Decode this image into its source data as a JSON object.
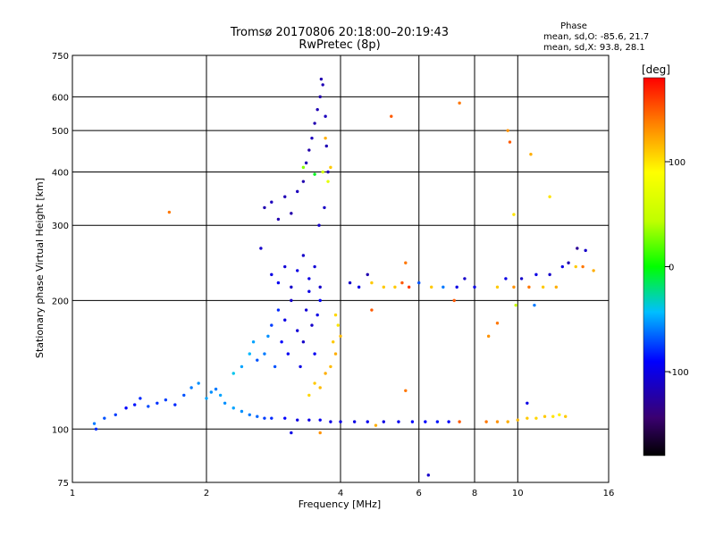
{
  "chart_data": {
    "type": "scatter",
    "title": "Tromsø 20170806 20:18:00–20:19:43",
    "subtitle": "RwPretec (8p)",
    "xlabel": "Frequency [MHz]",
    "ylabel": "Stationary phase Virtual Height [km]",
    "x_scale": "log",
    "y_scale": "log",
    "xlim": [
      1,
      16
    ],
    "ylim": [
      75,
      750
    ],
    "x_ticks": [
      1,
      2,
      4,
      6,
      8,
      10,
      16
    ],
    "x_tick_labels": [
      "1",
      "2",
      "4",
      "6",
      "8",
      "10",
      "16"
    ],
    "y_ticks": [
      75,
      100,
      200,
      300,
      400,
      500,
      600,
      750
    ],
    "y_tick_labels": [
      "75",
      "100",
      "200",
      "300",
      "400",
      "500",
      "600",
      "750"
    ],
    "grid": true,
    "stats": {
      "heading": "Phase",
      "line_o": "mean, sd,O: -85.6, 21.7",
      "line_x": "mean, sd,X: 93.8, 28.1"
    },
    "colorbar": {
      "label": "[deg]",
      "range": [
        -180,
        180
      ],
      "tick_values": [
        100,
        0,
        -100
      ],
      "tick_labels": [
        "100",
        "0",
        "-100"
      ],
      "colormap": "rainbow"
    },
    "series": [
      {
        "mode": "O",
        "points": [
          [
            1.12,
            103,
            -60
          ],
          [
            1.18,
            106,
            -70
          ],
          [
            1.25,
            108,
            -75
          ],
          [
            1.32,
            112,
            -90
          ],
          [
            1.38,
            114,
            -85
          ],
          [
            1.42,
            118,
            -80
          ],
          [
            1.48,
            113,
            -72
          ],
          [
            1.55,
            115,
            -78
          ],
          [
            1.62,
            117,
            -75
          ],
          [
            1.7,
            114,
            -80
          ],
          [
            1.78,
            120,
            -70
          ],
          [
            1.85,
            125,
            -60
          ],
          [
            1.92,
            128,
            -55
          ],
          [
            2.0,
            118,
            -50
          ],
          [
            2.05,
            122,
            -55
          ],
          [
            2.1,
            124,
            -60
          ],
          [
            2.15,
            120,
            -50
          ],
          [
            2.2,
            115,
            -55
          ],
          [
            2.3,
            112,
            -50
          ],
          [
            2.4,
            110,
            -55
          ],
          [
            2.5,
            108,
            -60
          ],
          [
            2.6,
            107,
            -65
          ],
          [
            2.7,
            106,
            -75
          ],
          [
            2.8,
            106,
            -80
          ],
          [
            3.0,
            106,
            -90
          ],
          [
            3.2,
            105,
            -100
          ],
          [
            3.4,
            105,
            -100
          ],
          [
            3.6,
            105,
            -95
          ],
          [
            3.8,
            104,
            -100
          ],
          [
            4.0,
            104,
            -100
          ],
          [
            4.3,
            104,
            -100
          ],
          [
            4.6,
            104,
            -95
          ],
          [
            5.0,
            104,
            -100
          ],
          [
            5.4,
            104,
            -95
          ],
          [
            5.8,
            104,
            -90
          ],
          [
            6.2,
            104,
            -90
          ],
          [
            6.6,
            104,
            -85
          ],
          [
            7.0,
            104,
            -90
          ],
          [
            7.4,
            104,
            150
          ],
          [
            2.3,
            135,
            -40
          ],
          [
            2.4,
            140,
            -50
          ],
          [
            2.5,
            150,
            -45
          ],
          [
            2.55,
            160,
            -50
          ],
          [
            2.6,
            145,
            -70
          ],
          [
            2.7,
            150,
            -60
          ],
          [
            2.75,
            165,
            -55
          ],
          [
            2.8,
            175,
            -75
          ],
          [
            2.85,
            140,
            -70
          ],
          [
            2.9,
            190,
            -80
          ],
          [
            2.95,
            160,
            -90
          ],
          [
            3.0,
            180,
            -100
          ],
          [
            3.05,
            150,
            -95
          ],
          [
            3.1,
            200,
            -110
          ],
          [
            3.2,
            170,
            -105
          ],
          [
            3.25,
            140,
            -100
          ],
          [
            3.3,
            160,
            -110
          ],
          [
            3.35,
            190,
            -105
          ],
          [
            3.4,
            210,
            -100
          ],
          [
            3.45,
            175,
            -110
          ],
          [
            3.5,
            150,
            -95
          ],
          [
            3.55,
            185,
            -100
          ],
          [
            3.6,
            200,
            -90
          ],
          [
            2.65,
            265,
            -110
          ],
          [
            2.8,
            230,
            -100
          ],
          [
            2.9,
            220,
            -95
          ],
          [
            3.0,
            240,
            -105
          ],
          [
            3.1,
            215,
            -110
          ],
          [
            3.2,
            235,
            -100
          ],
          [
            3.3,
            255,
            -110
          ],
          [
            3.4,
            225,
            -100
          ],
          [
            3.5,
            240,
            -105
          ],
          [
            3.6,
            215,
            -110
          ],
          [
            2.7,
            330,
            -120
          ],
          [
            2.8,
            340,
            -115
          ],
          [
            2.9,
            310,
            -120
          ],
          [
            3.0,
            350,
            -118
          ],
          [
            3.1,
            320,
            -122
          ],
          [
            3.2,
            360,
            -115
          ],
          [
            3.3,
            380,
            -120
          ],
          [
            3.35,
            420,
            -118
          ],
          [
            3.4,
            450,
            -122
          ],
          [
            3.45,
            480,
            -115
          ],
          [
            3.5,
            520,
            -120
          ],
          [
            3.55,
            560,
            -118
          ],
          [
            3.6,
            600,
            -122
          ],
          [
            3.65,
            640,
            -118
          ],
          [
            3.62,
            660,
            -120
          ],
          [
            3.7,
            540,
            -115
          ],
          [
            3.72,
            460,
            -118
          ],
          [
            3.75,
            400,
            -120
          ],
          [
            3.58,
            300,
            -110
          ],
          [
            3.68,
            330,
            -112
          ],
          [
            3.3,
            410,
            30
          ],
          [
            3.5,
            395,
            -5
          ],
          [
            3.65,
            400,
            60
          ],
          [
            3.8,
            410,
            110
          ],
          [
            3.75,
            380,
            70
          ],
          [
            3.85,
            160,
            110
          ],
          [
            3.9,
            150,
            120
          ],
          [
            3.95,
            175,
            100
          ],
          [
            3.7,
            135,
            120
          ],
          [
            3.6,
            125,
            115
          ],
          [
            3.4,
            120,
            105
          ],
          [
            3.5,
            128,
            110
          ],
          [
            3.8,
            140,
            115
          ],
          [
            4.0,
            165,
            115
          ],
          [
            3.9,
            185,
            105
          ],
          [
            4.2,
            220,
            -110
          ],
          [
            4.4,
            215,
            -100
          ],
          [
            4.6,
            230,
            -120
          ],
          [
            4.7,
            220,
            110
          ],
          [
            5.0,
            215,
            110
          ],
          [
            5.3,
            215,
            110
          ],
          [
            5.5,
            220,
            150
          ],
          [
            5.7,
            215,
            160
          ],
          [
            6.0,
            220,
            -70
          ],
          [
            6.4,
            215,
            110
          ],
          [
            6.8,
            215,
            -60
          ],
          [
            7.3,
            215,
            -100
          ],
          [
            7.6,
            225,
            -110
          ],
          [
            8.0,
            215,
            -100
          ],
          [
            8.5,
            104,
            140
          ],
          [
            9.0,
            104,
            130
          ],
          [
            9.5,
            104,
            120
          ],
          [
            10.0,
            105,
            115
          ],
          [
            10.5,
            106,
            110
          ],
          [
            11.0,
            106,
            105
          ],
          [
            11.5,
            107,
            110
          ],
          [
            12.0,
            107,
            100
          ],
          [
            12.4,
            108,
            95
          ],
          [
            12.8,
            107,
            110
          ],
          [
            9.0,
            215,
            110
          ],
          [
            9.4,
            225,
            -100
          ],
          [
            9.8,
            215,
            130
          ],
          [
            10.2,
            225,
            -110
          ],
          [
            10.6,
            215,
            140
          ],
          [
            11.0,
            230,
            -100
          ],
          [
            11.4,
            215,
            110
          ],
          [
            11.8,
            230,
            -110
          ],
          [
            12.2,
            215,
            120
          ],
          [
            12.6,
            240,
            -100
          ],
          [
            13.0,
            245,
            -120
          ],
          [
            13.5,
            240,
            110
          ],
          [
            14.0,
            240,
            140
          ],
          [
            14.8,
            235,
            120
          ],
          [
            13.6,
            265,
            -130
          ],
          [
            14.2,
            262,
            -110
          ]
        ]
      },
      {
        "mode": "outliers",
        "points": [
          [
            1.65,
            322,
            140
          ],
          [
            1.13,
            100,
            -80
          ],
          [
            5.2,
            540,
            150
          ],
          [
            7.4,
            580,
            140
          ],
          [
            9.5,
            500,
            130
          ],
          [
            9.6,
            470,
            150
          ],
          [
            9.8,
            318,
            100
          ],
          [
            10.7,
            440,
            120
          ],
          [
            11.8,
            350,
            100
          ],
          [
            3.7,
            480,
            120
          ],
          [
            5.6,
            245,
            140
          ],
          [
            9.9,
            195,
            50
          ],
          [
            10.9,
            195,
            -60
          ],
          [
            6.3,
            78,
            -110
          ],
          [
            3.1,
            98,
            -100
          ],
          [
            3.6,
            98,
            130
          ],
          [
            4.7,
            190,
            150
          ],
          [
            5.6,
            123,
            140
          ],
          [
            4.8,
            102,
            120
          ],
          [
            10.5,
            115,
            -100
          ],
          [
            7.2,
            200,
            150
          ],
          [
            9.0,
            177,
            140
          ],
          [
            8.6,
            165,
            130
          ]
        ]
      }
    ]
  }
}
